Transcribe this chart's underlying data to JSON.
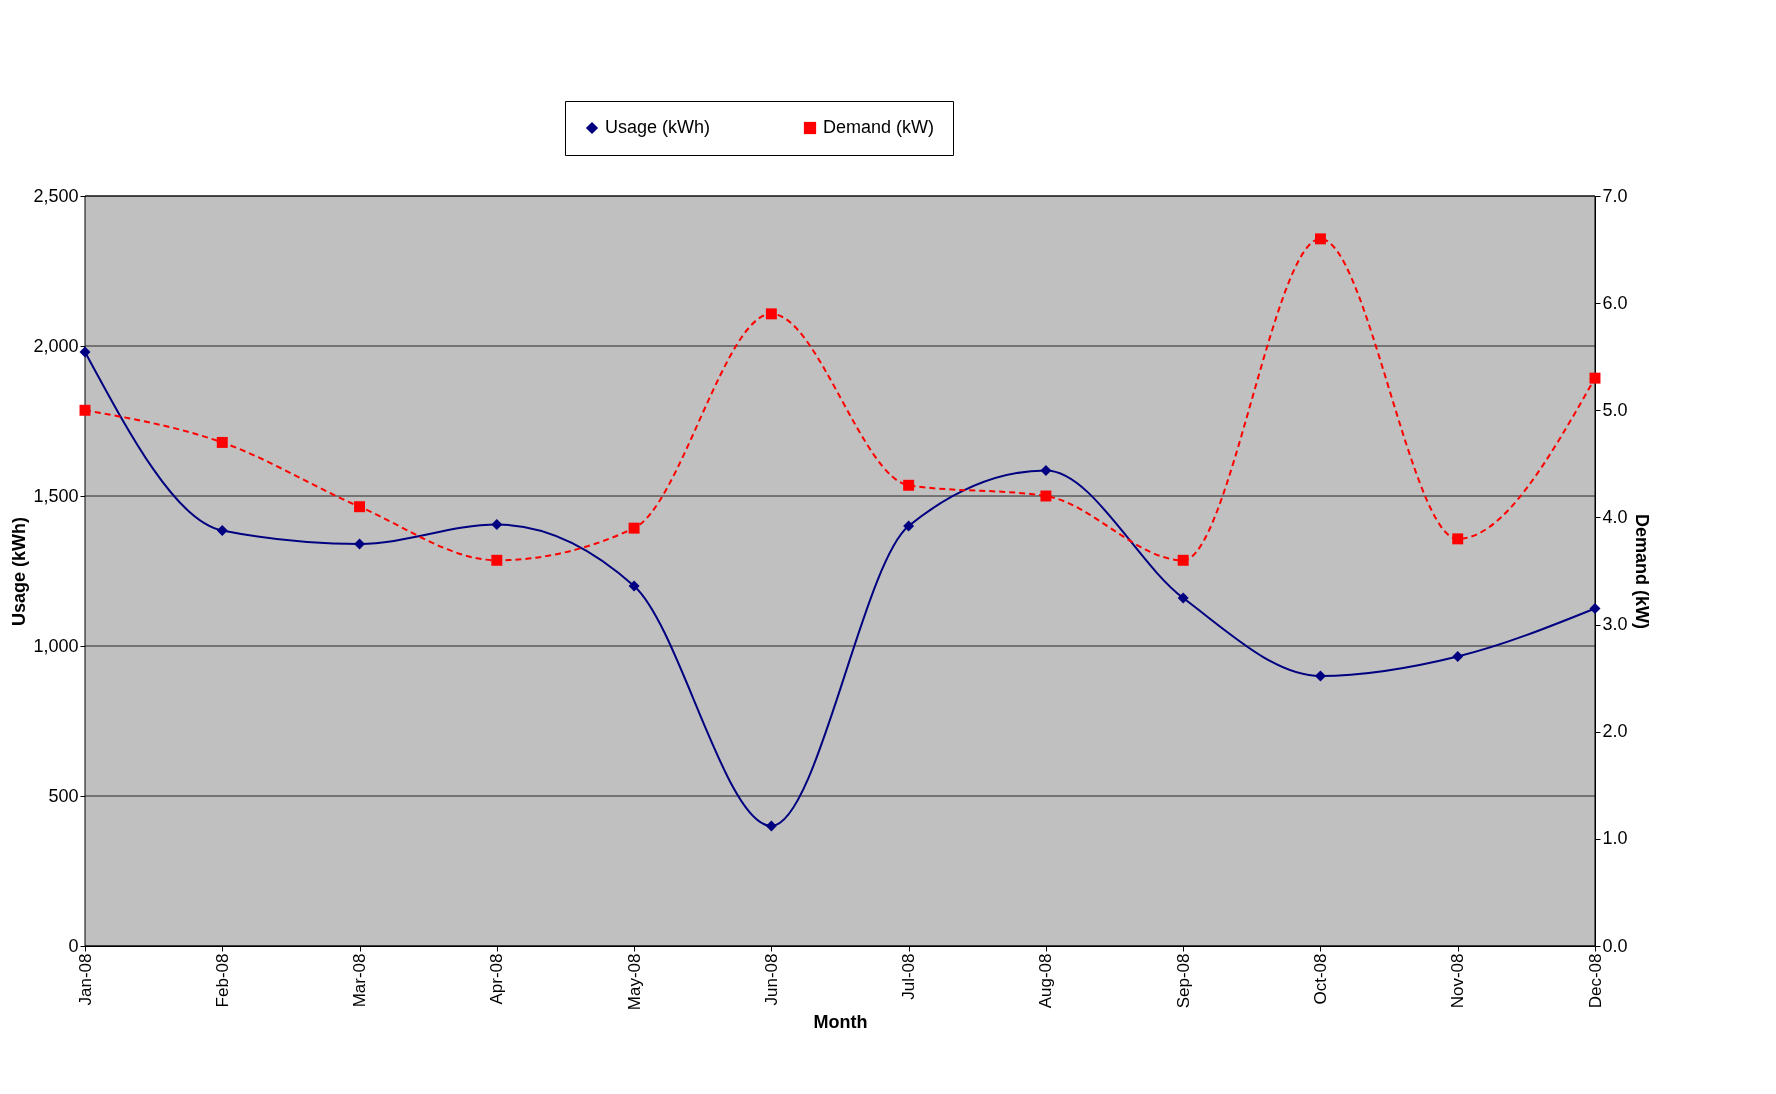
{
  "chart_data": {
    "type": "line",
    "xlabel": "Month",
    "ylabel": "Usage (kWh)",
    "y2label": "Demand (kW)",
    "categories": [
      "Jan-08",
      "Feb-08",
      "Mar-08",
      "Apr-08",
      "May-08",
      "Jun-08",
      "Jul-08",
      "Aug-08",
      "Sep-08",
      "Oct-08",
      "Nov-08",
      "Dec-08"
    ],
    "series": [
      {
        "name": "Usage (kWh)",
        "color": "#000080",
        "marker": "diamond",
        "line_style": "solid",
        "axis": "y",
        "values": [
          1980,
          1385,
          1340,
          1405,
          1200,
          400,
          1400,
          1585,
          1160,
          900,
          965,
          1125
        ]
      },
      {
        "name": "Demand (kW)",
        "color": "#ff0000",
        "marker": "square",
        "line_style": "dashed",
        "axis": "y2",
        "values": [
          5.0,
          4.7,
          4.1,
          3.6,
          3.9,
          5.9,
          4.3,
          4.2,
          3.6,
          6.6,
          3.8,
          5.3
        ]
      }
    ],
    "ylim": [
      0,
      2500
    ],
    "yticks": [
      {
        "value": 0,
        "label": "0"
      },
      {
        "value": 500,
        "label": "500"
      },
      {
        "value": 1000,
        "label": "1,000"
      },
      {
        "value": 1500,
        "label": "1,500"
      },
      {
        "value": 2000,
        "label": "2,000"
      },
      {
        "value": 2500,
        "label": "2,500"
      }
    ],
    "y2lim": [
      0,
      7
    ],
    "y2ticks": [
      {
        "value": 0,
        "label": "0.0"
      },
      {
        "value": 1,
        "label": "1.0"
      },
      {
        "value": 2,
        "label": "2.0"
      },
      {
        "value": 3,
        "label": "3.0"
      },
      {
        "value": 4,
        "label": "4.0"
      },
      {
        "value": 5,
        "label": "5.0"
      },
      {
        "value": 6,
        "label": "6.0"
      },
      {
        "value": 7,
        "label": "7.0"
      }
    ],
    "grid": "y",
    "legend": "top"
  }
}
